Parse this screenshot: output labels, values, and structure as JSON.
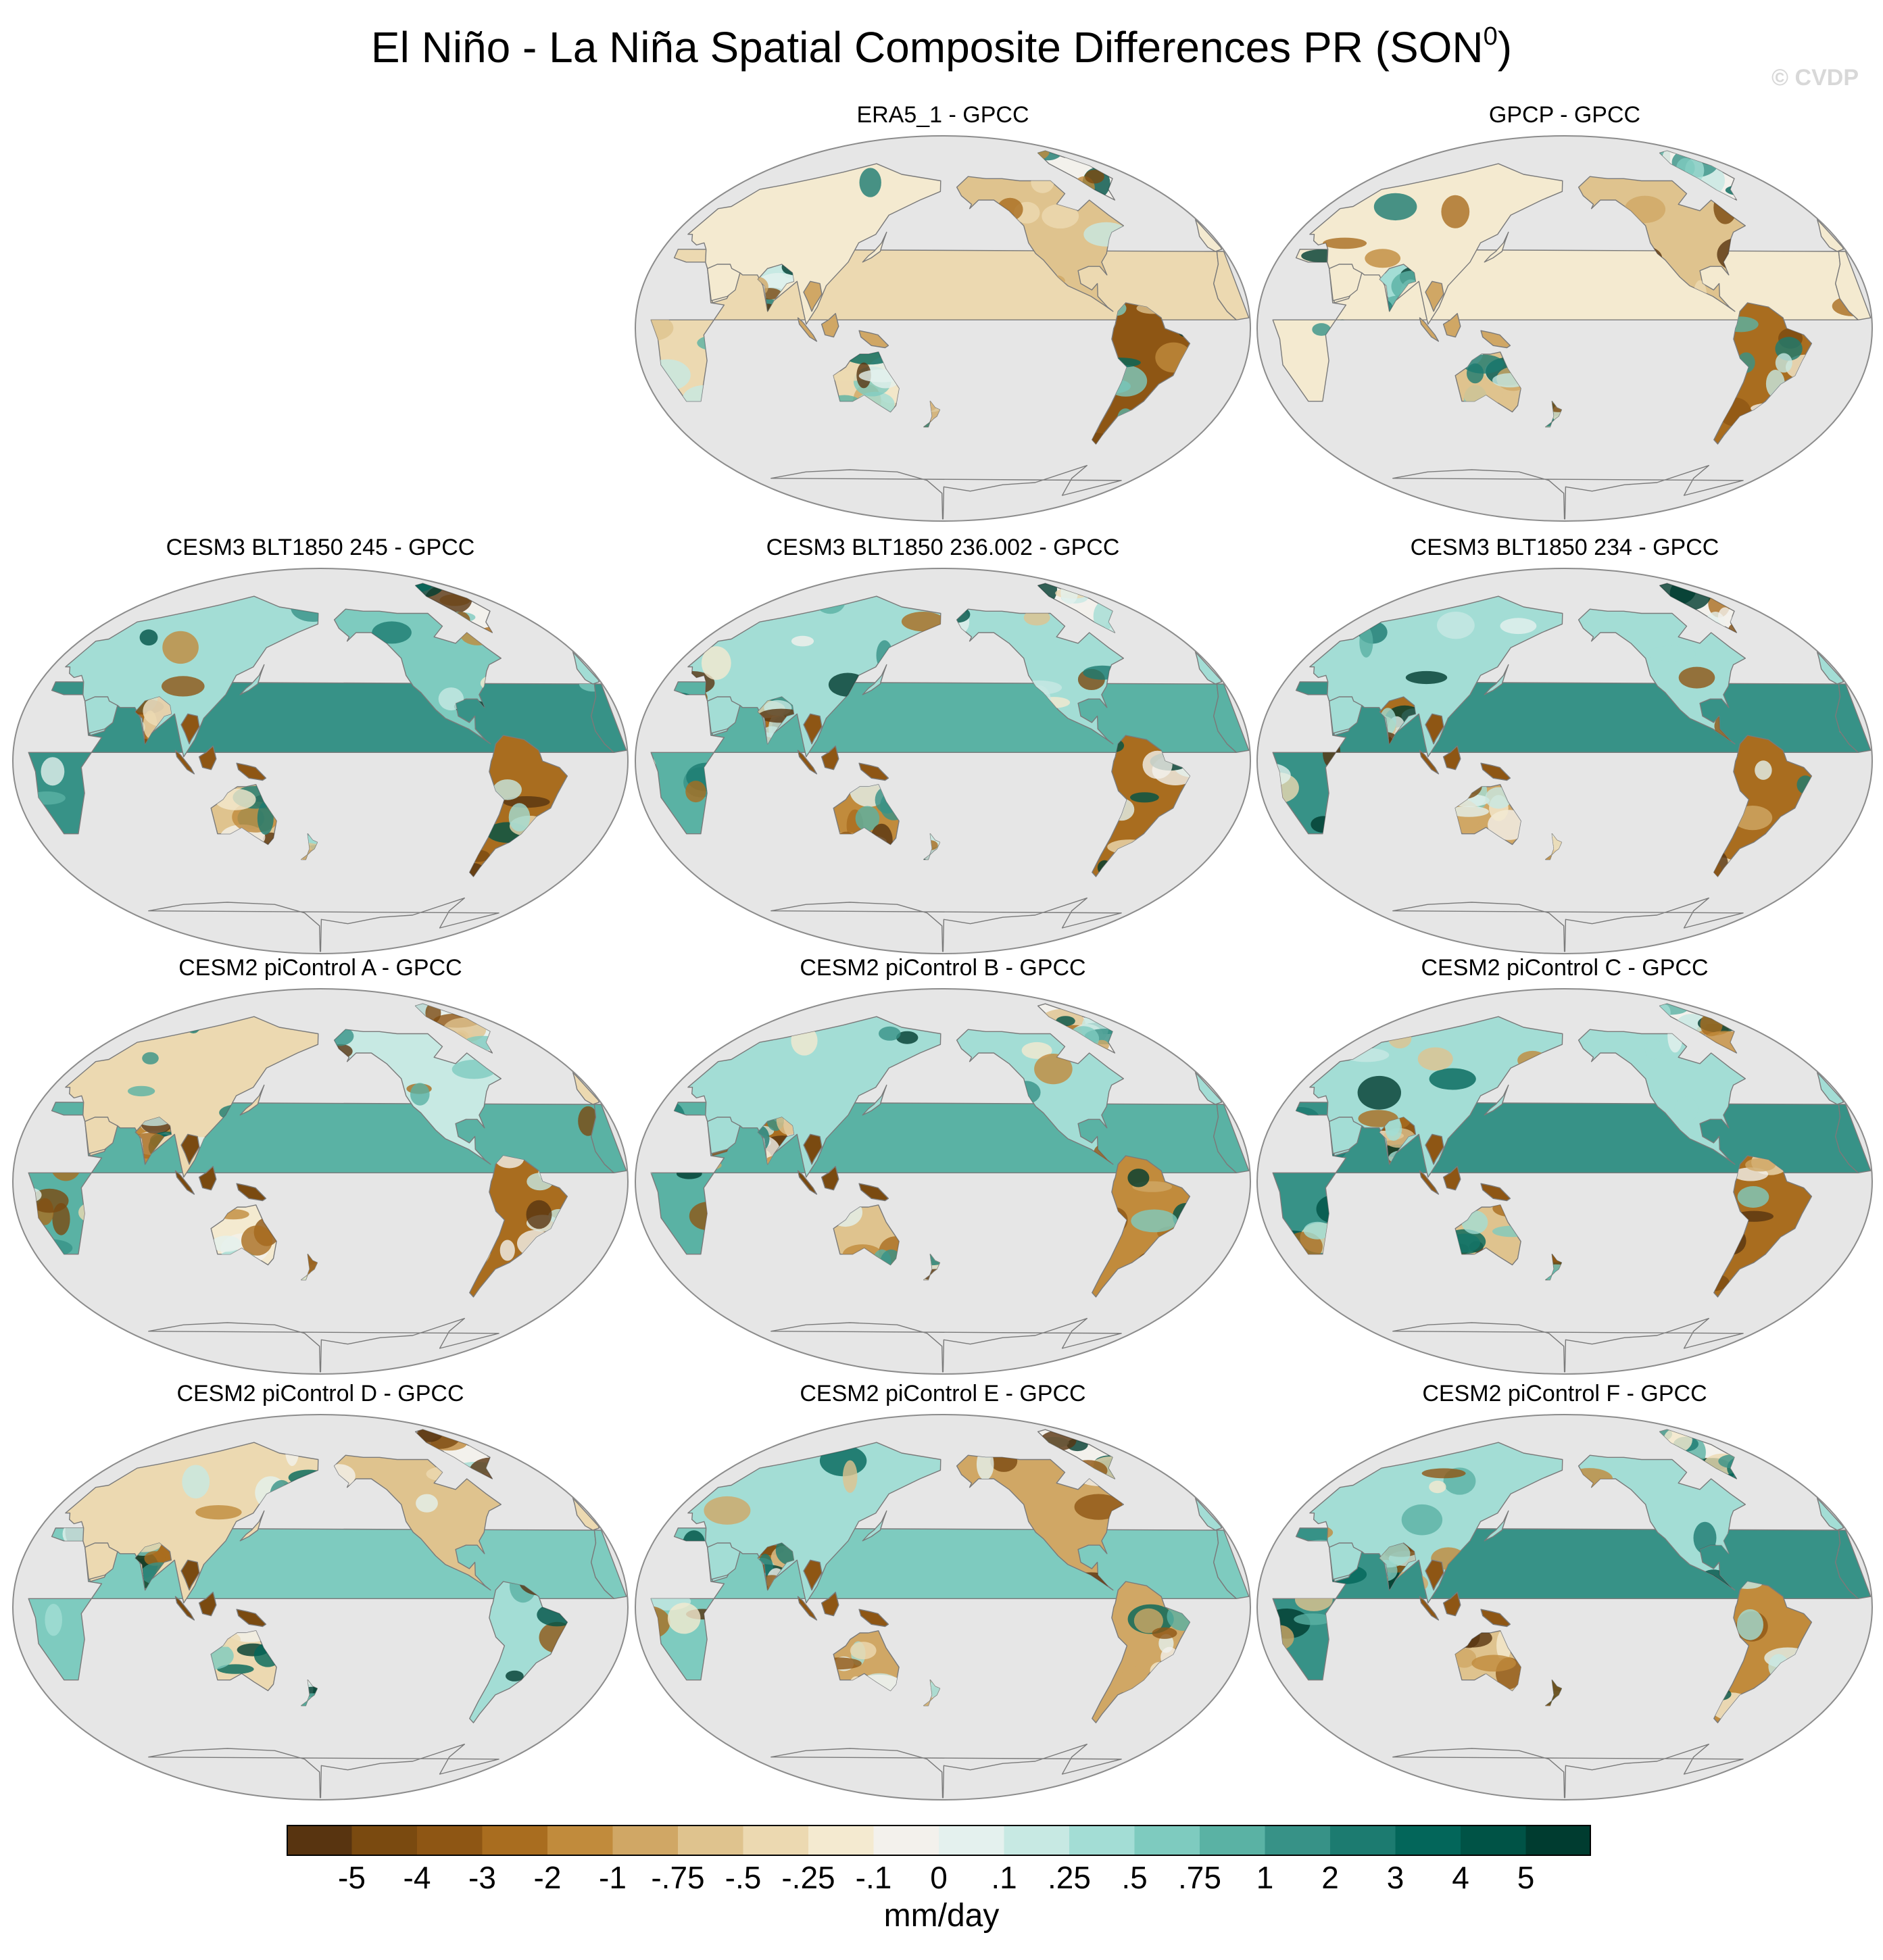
{
  "figure": {
    "title_main": "El Niño - La Niña Spatial Composite Differences PR (SON",
    "title_sup": "0",
    "title_close": ")",
    "watermark": "© CVDP"
  },
  "panels": [
    {
      "title": "ERA5_1 - GPCC"
    },
    {
      "title": "GPCP - GPCC"
    },
    {
      "title": "CESM3 BLT1850 245 - GPCC"
    },
    {
      "title": "CESM3 BLT1850 236.002 - GPCC"
    },
    {
      "title": "CESM3 BLT1850 234 - GPCC"
    },
    {
      "title": "CESM2 piControl A - GPCC"
    },
    {
      "title": "CESM2 piControl B - GPCC"
    },
    {
      "title": "CESM2 piControl C - GPCC"
    },
    {
      "title": "CESM2 piControl D - GPCC"
    },
    {
      "title": "CESM2 piControl E - GPCC"
    },
    {
      "title": "CESM2 piControl F - GPCC"
    }
  ],
  "colorbar": {
    "unit": "mm/day",
    "tick_labels": [
      "-5",
      "-4",
      "-3",
      "-2",
      "-1",
      "-.75",
      "-.5",
      "-.25",
      "-.1",
      "0",
      ".1",
      ".25",
      ".5",
      ".75",
      "1",
      "2",
      "3",
      "4",
      "5"
    ],
    "colors": [
      "#583410",
      "#7a4a10",
      "#8e5614",
      "#a96d1f",
      "#c18b3c",
      "#d0a765",
      "#dfc38e",
      "#ecd9b1",
      "#f4ead0",
      "#f3f1ec",
      "#e4f1ee",
      "#c7e9e3",
      "#a3ddd5",
      "#7ecbbf",
      "#5ab2a4",
      "#379287",
      "#1c7b70",
      "#03665a",
      "#005346",
      "#003c30"
    ]
  },
  "map_style": {
    "ocean": "#e6e6e6",
    "coast": "#7a7a7a",
    "neutral_land": "#f3f1ec"
  }
}
